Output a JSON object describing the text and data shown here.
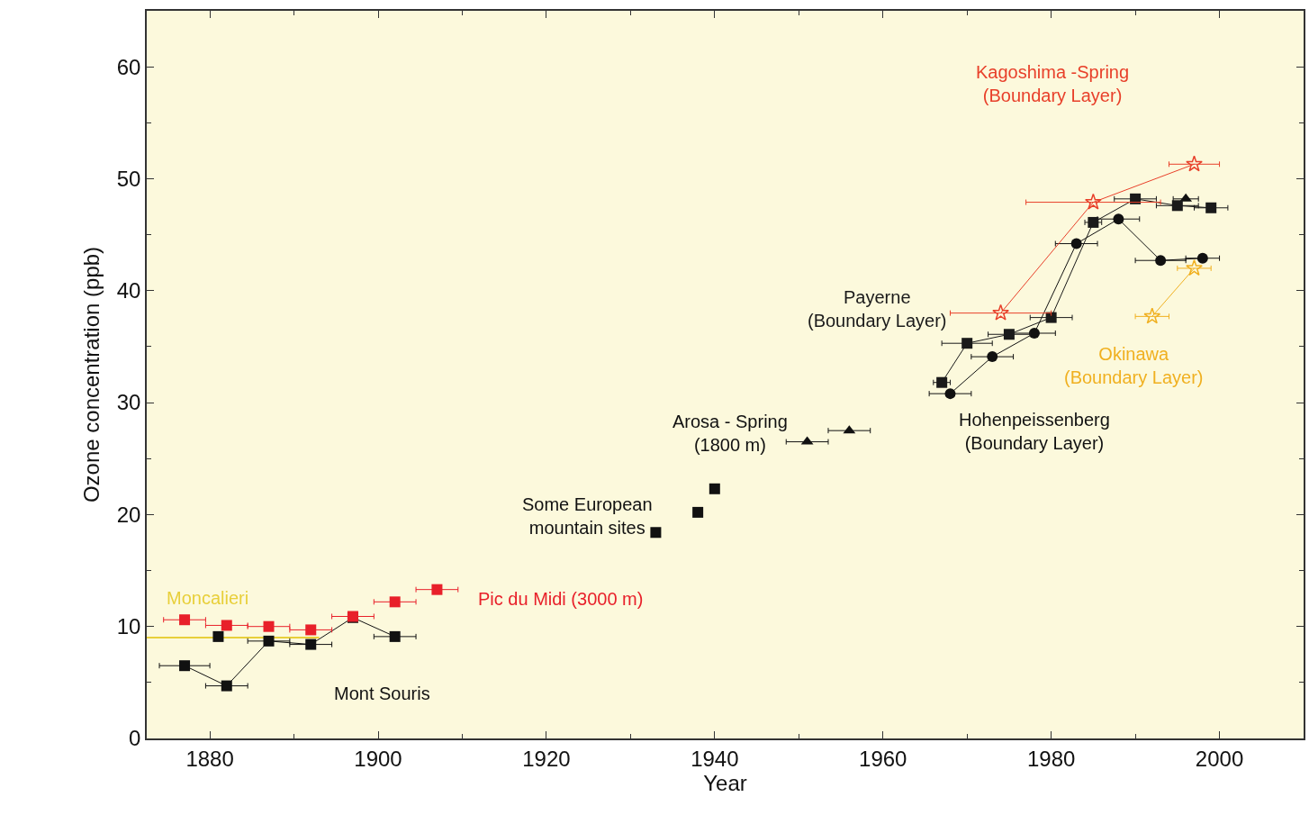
{
  "chart_data": {
    "type": "scatter",
    "xlabel": "Year",
    "ylabel": "Ozone concentration (ppb)",
    "xlim": [
      1872.5,
      2010
    ],
    "xticks": [
      1880,
      1900,
      1920,
      1940,
      1960,
      1980,
      2000
    ],
    "ylim": [
      0,
      65
    ],
    "yticks": [
      0,
      10,
      20,
      30,
      40,
      50,
      60
    ],
    "grid": false,
    "legend": false,
    "series": [
      {
        "name": "Moncalieri",
        "type": "line",
        "color": "#e8cf3a",
        "marker": "none",
        "x": [
          1872.5,
          1893
        ],
        "values": [
          9,
          9
        ]
      },
      {
        "name": "Mont Souris",
        "type": "line",
        "color": "#111111",
        "marker": "square",
        "x": [
          1877,
          1882,
          1887,
          1892,
          1897,
          1902
        ],
        "values": [
          6.5,
          4.7,
          8.7,
          8.4,
          10.8,
          9.1
        ],
        "xerrors": [
          3,
          2.5,
          2.5,
          2.5,
          null,
          2.5
        ]
      },
      {
        "name": "Pic du Midi (3000 m)",
        "type": "scatter",
        "color": "#e8202a",
        "marker": "square",
        "x": [
          1877,
          1882,
          1887,
          1892,
          1897,
          1902,
          1907
        ],
        "values": [
          10.6,
          10.1,
          10.0,
          9.7,
          10.9,
          12.2,
          13.3
        ],
        "xerrors": [
          2.5,
          2.5,
          2.5,
          2.5,
          2.5,
          2.5,
          2.5
        ]
      },
      {
        "type": "scatter",
        "color": "#111111",
        "marker": "square",
        "x": [
          1881
        ],
        "values": [
          9.1
        ]
      },
      {
        "name": "Some European\nmountain sites",
        "type": "scatter",
        "color": "#111111",
        "marker": "square",
        "x": [
          1933,
          1938,
          1940
        ],
        "values": [
          18.4,
          20.2,
          22.3
        ]
      },
      {
        "name": "Arosa - Spring\n(1800 m)",
        "type": "scatter",
        "color": "#111111",
        "marker": "triangle",
        "x": [
          1951,
          1956,
          1996
        ],
        "values": [
          26.5,
          27.5,
          48.2
        ],
        "xerrors": [
          2.5,
          2.5,
          1.5
        ]
      },
      {
        "name": "Hohenpeissenberg\n(Boundary Layer)",
        "type": "line",
        "color": "#111111",
        "marker": "circle",
        "x": [
          1968,
          1973,
          1978,
          1983,
          1988,
          1993,
          1998
        ],
        "values": [
          30.8,
          34.1,
          36.2,
          44.2,
          46.4,
          42.7,
          42.9
        ],
        "xerrors": [
          2.5,
          2.5,
          2.5,
          2.5,
          2.5,
          3,
          2
        ]
      },
      {
        "name": "Payerne\n(Boundary Layer)",
        "type": "line",
        "color": "#1a1a1a",
        "marker": "square",
        "x": [
          1967,
          1970,
          1975,
          1980,
          1985,
          1990,
          1995,
          1999
        ],
        "values": [
          31.8,
          35.3,
          36.1,
          37.6,
          46.1,
          48.2,
          47.6,
          47.4
        ],
        "xerrors": [
          1,
          3,
          2.5,
          2.5,
          1,
          2.5,
          2.5,
          2
        ]
      },
      {
        "name": "Kagoshima -Spring\n(Boundary Layer)",
        "type": "line",
        "color": "#e8402a",
        "marker": "star",
        "x": [
          1974,
          1985,
          1997
        ],
        "values": [
          38.0,
          47.9,
          51.3
        ],
        "xerrors": [
          6,
          8,
          3
        ]
      },
      {
        "name": "Okinawa\n(Boundary Layer)",
        "type": "line",
        "color": "#f0b020",
        "marker": "star",
        "x": [
          1992,
          1997
        ],
        "values": [
          37.7,
          42.0
        ],
        "xerrors": [
          2,
          2
        ]
      }
    ]
  }
}
